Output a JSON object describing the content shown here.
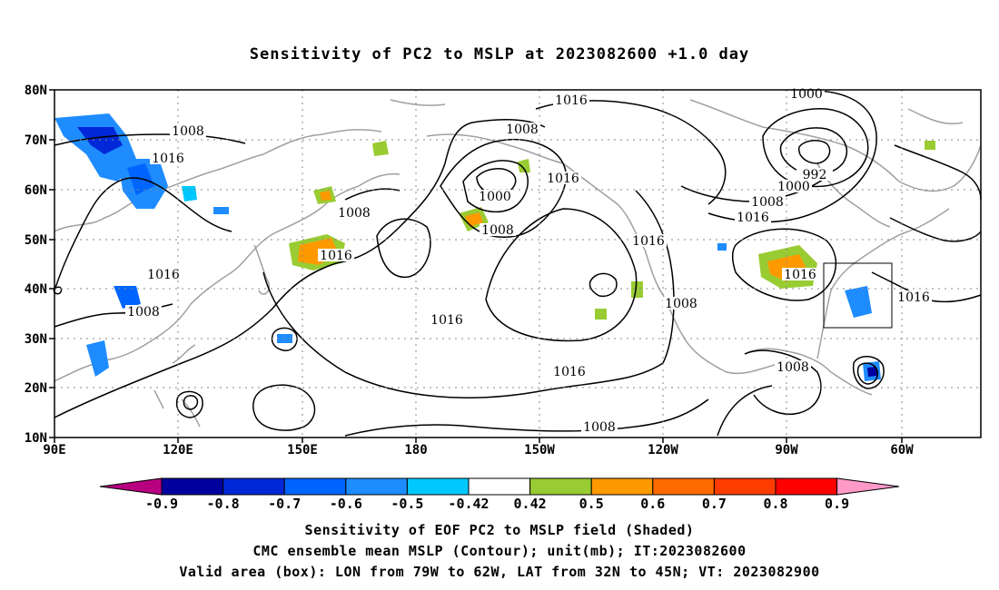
{
  "title": "Sensitivity of PC2 to MSLP at 2023082600 +1.0 day",
  "map": {
    "lat_labels": [
      "80N",
      "70N",
      "60N",
      "50N",
      "40N",
      "30N",
      "20N",
      "10N"
    ],
    "lon_labels": [
      "90E",
      "120E",
      "150E",
      "180",
      "150W",
      "120W",
      "90W",
      "60W"
    ],
    "lon_range": [
      "90E",
      "40W"
    ],
    "lat_range": [
      "10N",
      "80N"
    ],
    "gridlines": "dotted",
    "valid_box": {
      "lon": [
        "79W",
        "62W"
      ],
      "lat": [
        "32N",
        "45N"
      ]
    }
  },
  "contour_labels": [
    "1016",
    "1008",
    "1000",
    "992"
  ],
  "contour_color": "#000000",
  "coastline_color": "#a0a0a0",
  "colorbar": {
    "labels": [
      "-0.9",
      "-0.8",
      "-0.7",
      "-0.6",
      "-0.5",
      "-0.42",
      "0.42",
      "0.5",
      "0.6",
      "0.7",
      "0.8",
      "0.9"
    ],
    "colors": [
      "#b7007f",
      "#00009e",
      "#0028d8",
      "#0064ff",
      "#1e8cff",
      "#00c8ff",
      "#ffffff",
      "#99cc33",
      "#ff9900",
      "#ff6a00",
      "#ff3c00",
      "#ff0000",
      "#ff99c8"
    ]
  },
  "captions": {
    "line1": "Sensitivity of EOF PC2 to MSLP field (Shaded)",
    "line2": "CMC ensemble mean MSLP (Contour); unit(mb); IT:2023082600",
    "line3": "Valid area (box): LON from 79W to 62W, LAT from 32N to 45N; VT: 2023082900"
  }
}
